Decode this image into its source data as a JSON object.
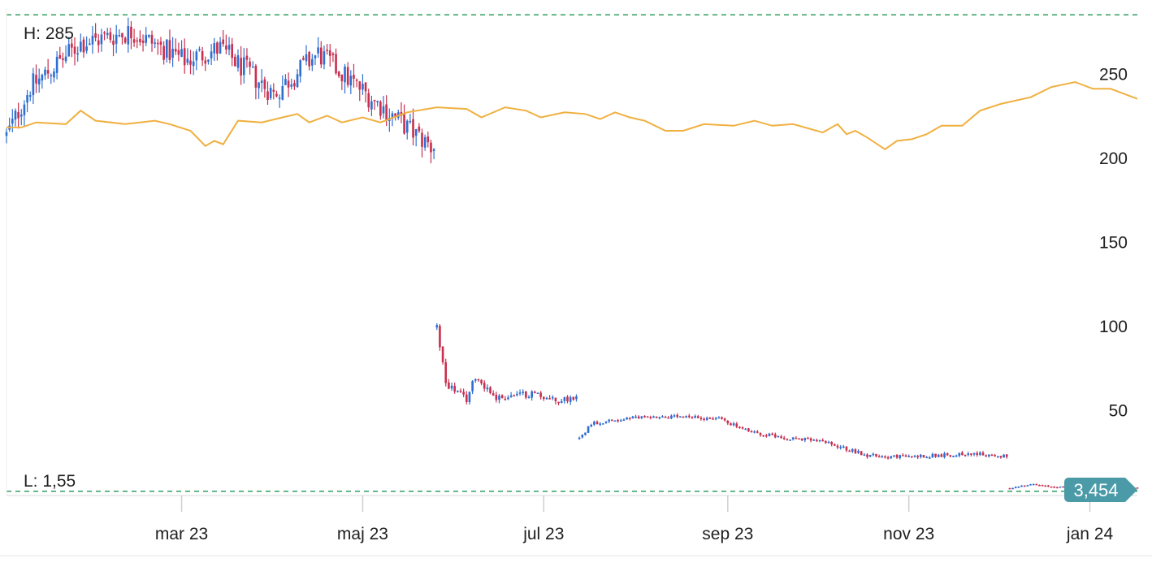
{
  "colors": {
    "up": "#2f6fd1",
    "down": "#c9304f",
    "line": "#f0b040",
    "dashed": "#2e9e5e",
    "badge": "#4b9aa8",
    "axis": "#d9d9d9"
  },
  "labels": {
    "high": "H: 285",
    "low": "L: 1,55",
    "last_value": "3,454"
  },
  "chart_data": {
    "type": "candlestick",
    "xlabel": "",
    "ylabel": "",
    "x_ticks": [
      "mar 23",
      "maj 23",
      "jul 23",
      "sep 23",
      "nov 23",
      "jan 24"
    ],
    "x_tick_days": [
      59,
      120,
      181,
      243,
      304,
      365
    ],
    "y_ticks": [
      50,
      100,
      150,
      200,
      250
    ],
    "ylim": [
      -1,
      289
    ],
    "xlim": [
      0,
      381
    ],
    "high": 285,
    "low": 1.55,
    "last": 3.454,
    "grid": false,
    "segments": [
      {
        "x0": 0,
        "x1": 144,
        "start": 213,
        "end": 205,
        "trend": [
          [
            0,
            213
          ],
          [
            8,
            242
          ],
          [
            25,
            268
          ],
          [
            42,
            275
          ],
          [
            60,
            258
          ],
          [
            72,
            265
          ],
          [
            90,
            238
          ],
          [
            105,
            262
          ],
          [
            130,
            225
          ],
          [
            144,
            205
          ]
        ],
        "vol": 10
      },
      {
        "x0": 145,
        "x1": 192,
        "start": 99,
        "end": 58,
        "trend": [
          [
            145,
            99
          ],
          [
            148,
            66
          ],
          [
            155,
            56
          ],
          [
            158,
            70
          ],
          [
            165,
            57
          ],
          [
            178,
            60
          ],
          [
            185,
            55
          ],
          [
            192,
            58
          ]
        ],
        "vol": 3
      },
      {
        "x0": 193,
        "x1": 337,
        "start": 33,
        "end": 22,
        "trend": [
          [
            193,
            33
          ],
          [
            197,
            42
          ],
          [
            215,
            46
          ],
          [
            240,
            45
          ],
          [
            250,
            37
          ],
          [
            260,
            34
          ],
          [
            275,
            31
          ],
          [
            290,
            23
          ],
          [
            300,
            22
          ],
          [
            315,
            23
          ],
          [
            325,
            24
          ],
          [
            337,
            22
          ]
        ],
        "vol": 1.6
      },
      {
        "x0": 338,
        "x1": 381,
        "start": 3.4,
        "end": 3.454,
        "trend": [
          [
            338,
            3.4
          ],
          [
            345,
            5.8
          ],
          [
            352,
            4.2
          ],
          [
            365,
            3.7
          ],
          [
            381,
            3.454
          ]
        ],
        "vol": 0.5
      }
    ],
    "comparison_line": [
      [
        0,
        218
      ],
      [
        5,
        218
      ],
      [
        10,
        221
      ],
      [
        20,
        220
      ],
      [
        25,
        228
      ],
      [
        30,
        222
      ],
      [
        40,
        220
      ],
      [
        50,
        222
      ],
      [
        55,
        220
      ],
      [
        62,
        216
      ],
      [
        67,
        207
      ],
      [
        70,
        210
      ],
      [
        73,
        208
      ],
      [
        78,
        222
      ],
      [
        86,
        221
      ],
      [
        93,
        224
      ],
      [
        98,
        226
      ],
      [
        102,
        221
      ],
      [
        108,
        225
      ],
      [
        113,
        221
      ],
      [
        120,
        224
      ],
      [
        126,
        221
      ],
      [
        135,
        227
      ],
      [
        145,
        230
      ],
      [
        155,
        229
      ],
      [
        160,
        224
      ],
      [
        168,
        230
      ],
      [
        175,
        228
      ],
      [
        180,
        224
      ],
      [
        188,
        227
      ],
      [
        195,
        226
      ],
      [
        200,
        223
      ],
      [
        205,
        227
      ],
      [
        210,
        224
      ],
      [
        215,
        222
      ],
      [
        222,
        216
      ],
      [
        228,
        216
      ],
      [
        235,
        220
      ],
      [
        245,
        219
      ],
      [
        252,
        222
      ],
      [
        258,
        219
      ],
      [
        265,
        220
      ],
      [
        275,
        215
      ],
      [
        280,
        220
      ],
      [
        283,
        214
      ],
      [
        286,
        216
      ],
      [
        290,
        212
      ],
      [
        296,
        205
      ],
      [
        300,
        210
      ],
      [
        305,
        211
      ],
      [
        310,
        214
      ],
      [
        315,
        219
      ],
      [
        322,
        219
      ],
      [
        328,
        228
      ],
      [
        335,
        232
      ],
      [
        345,
        236
      ],
      [
        352,
        242
      ],
      [
        360,
        245
      ],
      [
        366,
        241
      ],
      [
        372,
        241
      ],
      [
        381,
        235
      ]
    ]
  }
}
